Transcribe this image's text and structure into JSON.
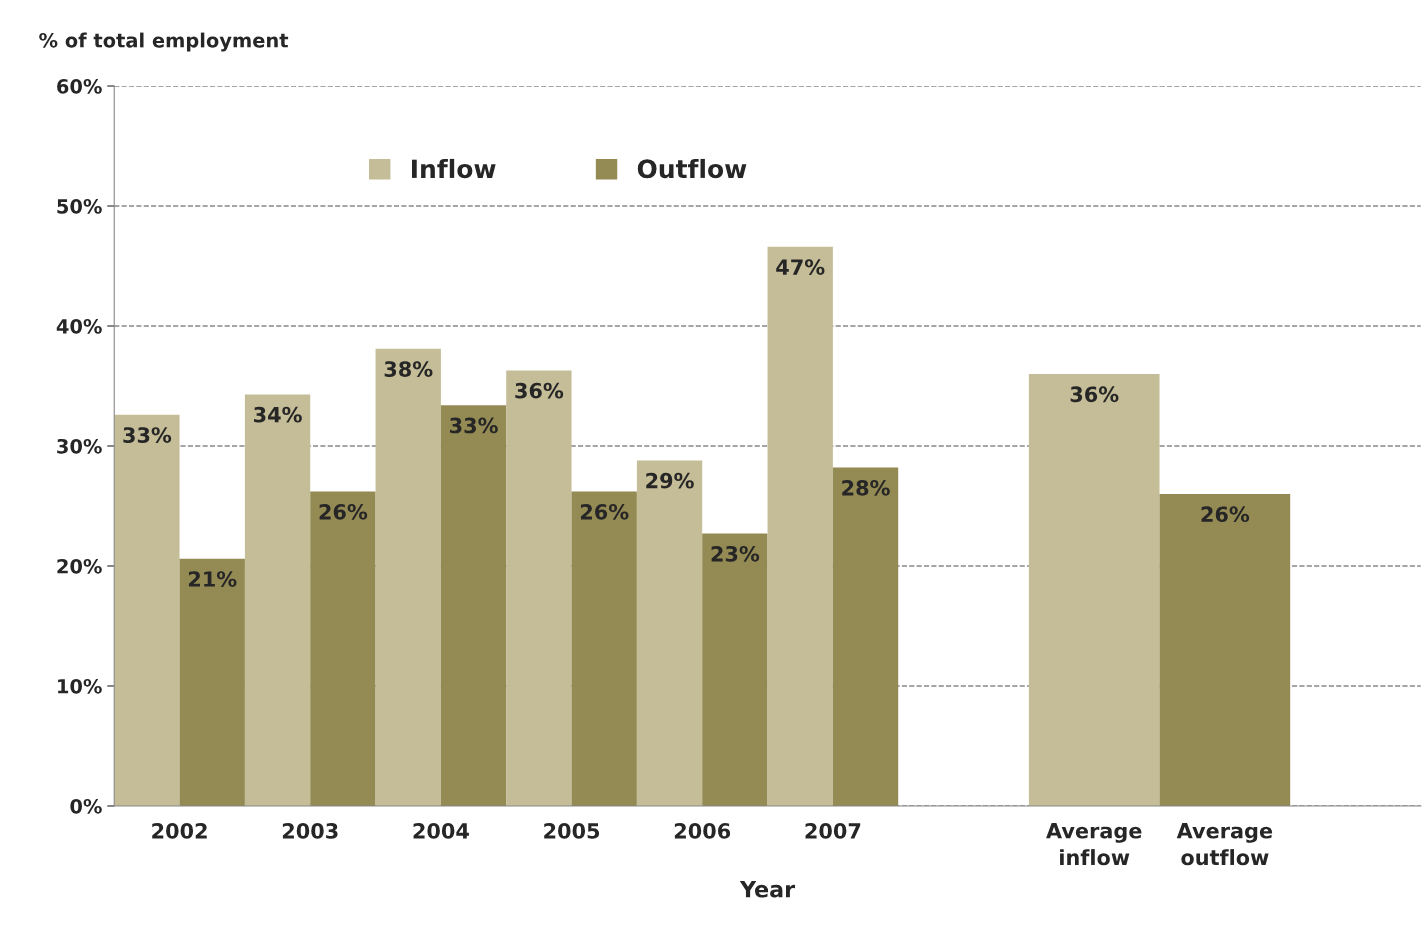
{
  "chart_data": {
    "type": "bar",
    "ylabel": "% of total employment",
    "xlabel": "Year",
    "categories": [
      "2002",
      "2003",
      "2004",
      "2005",
      "2006",
      "2007",
      null,
      "Average inflow",
      "Average outflow",
      null
    ],
    "series": [
      {
        "name": "Inflow",
        "color": "#c4bd97",
        "values": [
          32.6,
          34.3,
          38.1,
          36.3,
          28.8,
          46.6,
          null,
          36.0,
          null,
          null
        ],
        "value_labels": [
          "33%",
          "34%",
          "38%",
          "36%",
          "29%",
          "47%",
          null,
          "36%",
          null,
          null
        ]
      },
      {
        "name": "Outflow",
        "color": "#948a54",
        "values": [
          20.6,
          26.2,
          33.4,
          26.2,
          22.7,
          28.2,
          null,
          null,
          26.0,
          null
        ],
        "value_labels": [
          "21%",
          "26%",
          "33%",
          "26%",
          "23%",
          "28%",
          null,
          null,
          "26%",
          null
        ]
      }
    ],
    "ylim": [
      0,
      60
    ],
    "yticks": [
      {
        "value": 0,
        "label": "0%"
      },
      {
        "value": 10,
        "label": "10%"
      },
      {
        "value": 20,
        "label": "20%"
      },
      {
        "value": 30,
        "label": "30%"
      },
      {
        "value": 40,
        "label": "40%"
      },
      {
        "value": 50,
        "label": "50%"
      },
      {
        "value": 60,
        "label": "60%"
      }
    ],
    "grid": "y",
    "legend": "top"
  }
}
